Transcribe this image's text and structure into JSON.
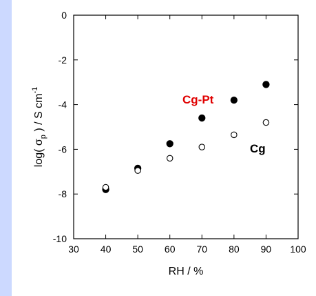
{
  "chart_data": {
    "type": "scatter",
    "xlabel": "RH / %",
    "ylabel_parts": {
      "pre": "log( σ",
      "sub": "p",
      "post": " ) / S cm",
      "sup": "-1"
    },
    "xlim": [
      30,
      100
    ],
    "ylim": [
      -10,
      0
    ],
    "x_ticks": [
      "30",
      "40",
      "50",
      "60",
      "70",
      "80",
      "90",
      "100"
    ],
    "y_ticks": [
      "0",
      "-2",
      "-4",
      "-6",
      "-8",
      "-10"
    ],
    "series": [
      {
        "name": "Cg-Pt",
        "marker": "filled-circle",
        "color": "#000000",
        "x": [
          40,
          50,
          60,
          70,
          80,
          90
        ],
        "y": [
          -7.8,
          -6.85,
          -5.75,
          -4.6,
          -3.8,
          -3.1
        ]
      },
      {
        "name": "Cg",
        "marker": "open-circle",
        "color": "#000000",
        "x": [
          40,
          50,
          60,
          70,
          80,
          90
        ],
        "y": [
          -7.7,
          -6.95,
          -6.4,
          -5.9,
          -5.35,
          -4.8
        ]
      }
    ],
    "annotations": [
      {
        "text": "Cg-Pt",
        "color": "#e00000"
      },
      {
        "text": "Cg",
        "color": "#000000"
      }
    ]
  }
}
